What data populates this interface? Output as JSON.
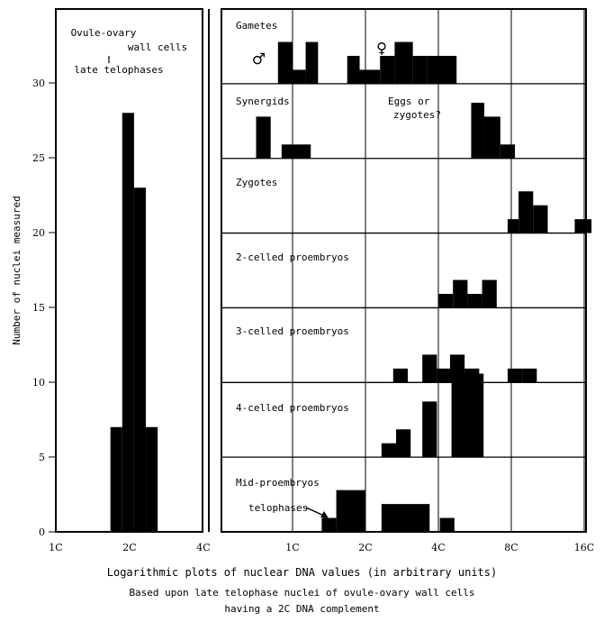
{
  "chart_data": {
    "type": "bar",
    "ylabel": "Number of nuclei measured",
    "xlabel": "Logarithmic plots of nuclear DNA values (in arbitrary units)",
    "caption_lines": [
      "Based upon late telophase nuclei of ovule-ovary wall cells",
      "having a 2C DNA complement"
    ],
    "yticks": [
      0,
      5,
      10,
      15,
      20,
      25,
      30
    ],
    "ylim": [
      0,
      35
    ],
    "left_panel": {
      "title_lines": [
        "Ovule-ovary",
        "wall cells",
        "late telophases"
      ],
      "xticks": [
        "1C",
        "2C",
        "4C"
      ],
      "bars": [
        {
          "x0": 0.74,
          "x1": 0.9,
          "y": 7
        },
        {
          "x0": 0.9,
          "x1": 1.06,
          "y": 28
        },
        {
          "x0": 1.06,
          "x1": 1.22,
          "y": 23
        },
        {
          "x0": 1.22,
          "x1": 1.38,
          "y": 7
        }
      ]
    },
    "right_panel": {
      "xticks": [
        "1C",
        "2C",
        "4C",
        "8C",
        "16C"
      ],
      "stages": [
        {
          "name": "Gametes",
          "symbols": [
            "♂",
            "♀"
          ],
          "bars": [
            {
              "x0": -0.2,
              "x1": 0.0,
              "y": 3
            },
            {
              "x0": 0.0,
              "x1": 0.18,
              "y": 1
            },
            {
              "x0": 0.18,
              "x1": 0.35,
              "y": 3
            },
            {
              "x0": 0.75,
              "x1": 0.92,
              "y": 2
            },
            {
              "x0": 0.92,
              "x1": 1.2,
              "y": 1
            },
            {
              "x0": 1.2,
              "x1": 1.4,
              "y": 2
            },
            {
              "x0": 1.4,
              "x1": 1.65,
              "y": 3
            },
            {
              "x0": 1.65,
              "x1": 1.85,
              "y": 2
            },
            {
              "x0": 1.85,
              "x1": 2.25,
              "y": 2
            }
          ]
        },
        {
          "name": "Synergids",
          "note_lines": [
            "Eggs or",
            "zygotes?"
          ],
          "bars": [
            {
              "x0": -0.5,
              "x1": -0.3,
              "y": 3
            },
            {
              "x0": -0.15,
              "x1": 0.25,
              "y": 1
            },
            {
              "x0": 2.45,
              "x1": 2.63,
              "y": 4
            },
            {
              "x0": 2.63,
              "x1": 2.85,
              "y": 3
            },
            {
              "x0": 2.85,
              "x1": 3.05,
              "y": 1
            }
          ]
        },
        {
          "name": "Zygotes",
          "bars": [
            {
              "x0": 2.95,
              "x1": 3.1,
              "y": 1
            },
            {
              "x0": 3.1,
              "x1": 3.3,
              "y": 3
            },
            {
              "x0": 3.3,
              "x1": 3.5,
              "y": 2
            },
            {
              "x0": 3.87,
              "x1": 4.1,
              "y": 1
            }
          ]
        },
        {
          "name": "2-celled proembryos",
          "bars": [
            {
              "x0": 2.0,
              "x1": 2.2,
              "y": 1
            },
            {
              "x0": 2.2,
              "x1": 2.4,
              "y": 2
            },
            {
              "x0": 2.4,
              "x1": 2.6,
              "y": 1
            },
            {
              "x0": 2.6,
              "x1": 2.8,
              "y": 2
            }
          ]
        },
        {
          "name": "3-celled proembryos",
          "bars": [
            {
              "x0": 1.38,
              "x1": 1.58,
              "y": 1
            },
            {
              "x0": 1.78,
              "x1": 1.98,
              "y": 2
            },
            {
              "x0": 1.98,
              "x1": 2.16,
              "y": 1
            },
            {
              "x0": 2.16,
              "x1": 2.36,
              "y": 2
            },
            {
              "x0": 2.36,
              "x1": 2.56,
              "y": 1
            },
            {
              "x0": 2.95,
              "x1": 3.15,
              "y": 1
            },
            {
              "x0": 3.15,
              "x1": 3.35,
              "y": 1
            }
          ]
        },
        {
          "name": "4-celled proembryos",
          "bars": [
            {
              "x0": 1.22,
              "x1": 1.42,
              "y": 1
            },
            {
              "x0": 1.42,
              "x1": 1.62,
              "y": 2
            },
            {
              "x0": 1.78,
              "x1": 1.98,
              "y": 4
            },
            {
              "x0": 2.18,
              "x1": 2.62,
              "y": 6
            }
          ]
        },
        {
          "name": "Mid-proembryos",
          "note_lines": [
            "telophases"
          ],
          "bars": [
            {
              "x0": 0.4,
              "x1": 0.6,
              "y": 1
            },
            {
              "x0": 0.6,
              "x1": 1.0,
              "y": 3
            },
            {
              "x0": 1.22,
              "x1": 1.88,
              "y": 2
            },
            {
              "x0": 2.02,
              "x1": 2.22,
              "y": 1
            }
          ]
        }
      ]
    }
  }
}
